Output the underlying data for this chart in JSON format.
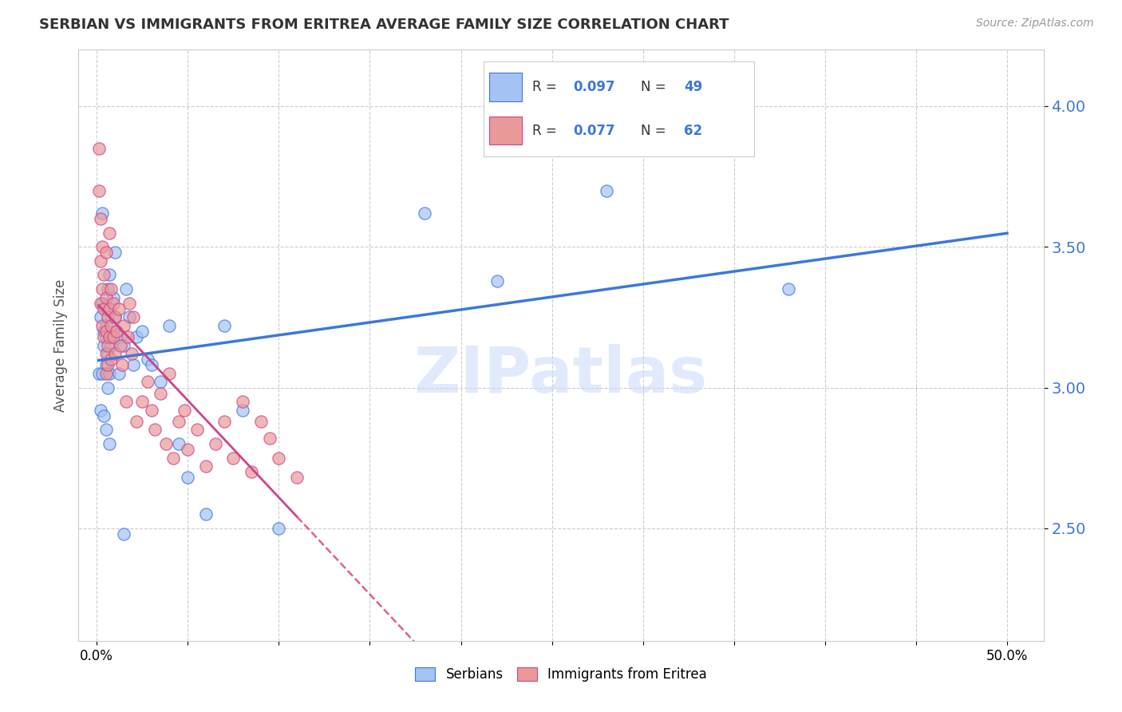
{
  "title": "SERBIAN VS IMMIGRANTS FROM ERITREA AVERAGE FAMILY SIZE CORRELATION CHART",
  "source": "Source: ZipAtlas.com",
  "ylabel": "Average Family Size",
  "yticks": [
    2.5,
    3.0,
    3.5,
    4.0
  ],
  "xlim": [
    -0.01,
    0.52
  ],
  "ylim": [
    2.1,
    4.2
  ],
  "blue_color": "#a4c2f4",
  "pink_color": "#ea9999",
  "blue_line_color": "#3c78d8",
  "pink_line_color": "#cc4488",
  "pink_dash_color": "#e06090",
  "watermark_color": "#c9daf8",
  "legend_label_blue": "Serbians",
  "legend_label_pink": "Immigrants from Eritrea",
  "blue_scatter_x": [
    0.001,
    0.002,
    0.002,
    0.003,
    0.003,
    0.003,
    0.004,
    0.004,
    0.004,
    0.005,
    0.005,
    0.005,
    0.005,
    0.005,
    0.006,
    0.006,
    0.006,
    0.007,
    0.007,
    0.007,
    0.008,
    0.008,
    0.009,
    0.01,
    0.01,
    0.011,
    0.012,
    0.013,
    0.015,
    0.016,
    0.018,
    0.02,
    0.022,
    0.025,
    0.028,
    0.03,
    0.035,
    0.04,
    0.045,
    0.05,
    0.06,
    0.07,
    0.08,
    0.1,
    0.18,
    0.22,
    0.28,
    0.38,
    0.015
  ],
  "blue_scatter_y": [
    3.05,
    3.25,
    2.92,
    3.3,
    3.05,
    3.62,
    3.2,
    2.9,
    3.15,
    3.28,
    3.08,
    3.18,
    2.85,
    3.22,
    3.0,
    3.35,
    3.12,
    2.8,
    3.4,
    3.05,
    3.18,
    3.15,
    3.32,
    3.25,
    3.48,
    3.2,
    3.05,
    3.18,
    3.15,
    3.35,
    3.25,
    3.08,
    3.18,
    3.2,
    3.1,
    3.08,
    3.02,
    3.22,
    2.8,
    2.68,
    2.55,
    3.22,
    2.92,
    2.5,
    3.62,
    3.38,
    3.7,
    3.35,
    2.48
  ],
  "pink_scatter_x": [
    0.001,
    0.001,
    0.002,
    0.002,
    0.002,
    0.003,
    0.003,
    0.003,
    0.004,
    0.004,
    0.004,
    0.005,
    0.005,
    0.005,
    0.005,
    0.006,
    0.006,
    0.006,
    0.007,
    0.007,
    0.008,
    0.008,
    0.008,
    0.009,
    0.009,
    0.01,
    0.01,
    0.011,
    0.012,
    0.013,
    0.014,
    0.015,
    0.016,
    0.017,
    0.018,
    0.019,
    0.02,
    0.022,
    0.025,
    0.028,
    0.03,
    0.032,
    0.035,
    0.038,
    0.04,
    0.042,
    0.045,
    0.048,
    0.05,
    0.055,
    0.06,
    0.065,
    0.07,
    0.075,
    0.08,
    0.085,
    0.09,
    0.095,
    0.1,
    0.11,
    0.005,
    0.007
  ],
  "pink_scatter_y": [
    3.85,
    3.7,
    3.6,
    3.45,
    3.3,
    3.5,
    3.35,
    3.22,
    3.4,
    3.28,
    3.18,
    3.32,
    3.2,
    3.12,
    3.05,
    3.25,
    3.15,
    3.08,
    3.28,
    3.18,
    3.35,
    3.22,
    3.1,
    3.3,
    3.18,
    3.25,
    3.12,
    3.2,
    3.28,
    3.15,
    3.08,
    3.22,
    2.95,
    3.18,
    3.3,
    3.12,
    3.25,
    2.88,
    2.95,
    3.02,
    2.92,
    2.85,
    2.98,
    2.8,
    3.05,
    2.75,
    2.88,
    2.92,
    2.78,
    2.85,
    2.72,
    2.8,
    2.88,
    2.75,
    2.95,
    2.7,
    2.88,
    2.82,
    2.75,
    2.68,
    3.48,
    3.55
  ]
}
